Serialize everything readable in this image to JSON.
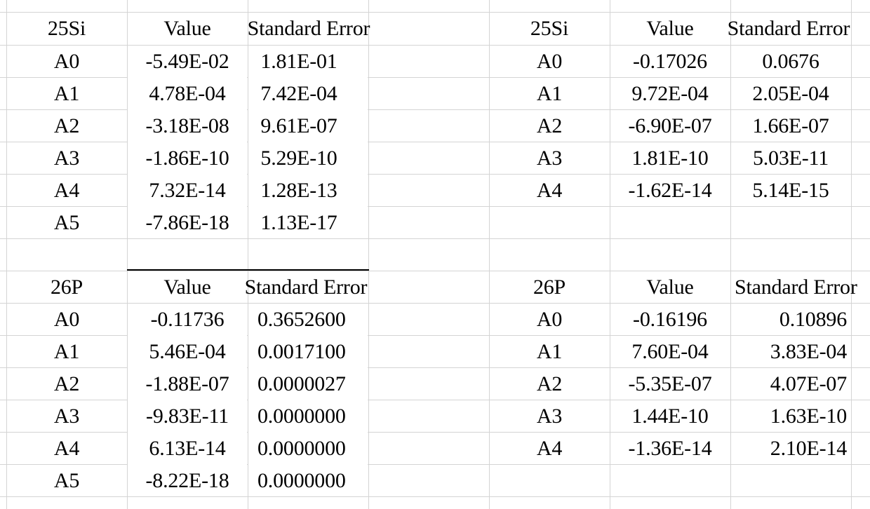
{
  "tables": [
    {
      "id": "top-left",
      "element": "25Si",
      "col_value": "Value",
      "col_error": "Standard Error",
      "rows": [
        {
          "param": "A0",
          "value": "-5.49E-02",
          "error": "1.81E-01"
        },
        {
          "param": "A1",
          "value": "4.78E-04",
          "error": "7.42E-04"
        },
        {
          "param": "A2",
          "value": "-3.18E-08",
          "error": "9.61E-07"
        },
        {
          "param": "A3",
          "value": "-1.86E-10",
          "error": "5.29E-10"
        },
        {
          "param": "A4",
          "value": "7.32E-14",
          "error": "1.28E-13"
        },
        {
          "param": "A5",
          "value": "-7.86E-18",
          "error": "1.13E-17"
        }
      ]
    },
    {
      "id": "top-right",
      "element": "25Si",
      "col_value": "Value",
      "col_error": "Standard Error",
      "rows": [
        {
          "param": "A0",
          "value": "-0.17026",
          "error": "0.0676"
        },
        {
          "param": "A1",
          "value": "9.72E-04",
          "error": "2.05E-04"
        },
        {
          "param": "A2",
          "value": "-6.90E-07",
          "error": "1.66E-07"
        },
        {
          "param": "A3",
          "value": "1.81E-10",
          "error": "5.03E-11"
        },
        {
          "param": "A4",
          "value": "-1.62E-14",
          "error": "5.14E-15"
        }
      ]
    },
    {
      "id": "bottom-left",
      "element": "26P",
      "col_value": "Value",
      "col_error": "Standard Error",
      "rows": [
        {
          "param": "A0",
          "value": "-0.11736",
          "error": "0.3652600"
        },
        {
          "param": "A1",
          "value": "5.46E-04",
          "error": "0.0017100"
        },
        {
          "param": "A2",
          "value": "-1.88E-07",
          "error": "0.0000027"
        },
        {
          "param": "A3",
          "value": "-9.83E-11",
          "error": "0.0000000"
        },
        {
          "param": "A4",
          "value": "6.13E-14",
          "error": "0.0000000"
        },
        {
          "param": "A5",
          "value": "-8.22E-18",
          "error": "0.0000000"
        }
      ]
    },
    {
      "id": "bottom-right",
      "element": "26P",
      "col_value": "Value",
      "col_error": "Standard Error",
      "rows": [
        {
          "param": "A0",
          "value": "-0.16196",
          "error": "0.10896"
        },
        {
          "param": "A1",
          "value": "7.60E-04",
          "error": "3.83E-04"
        },
        {
          "param": "A2",
          "value": "-5.35E-07",
          "error": "4.07E-07"
        },
        {
          "param": "A3",
          "value": "1.44E-10",
          "error": "1.63E-10"
        },
        {
          "param": "A4",
          "value": "-1.36E-14",
          "error": "2.10E-14"
        }
      ]
    }
  ]
}
